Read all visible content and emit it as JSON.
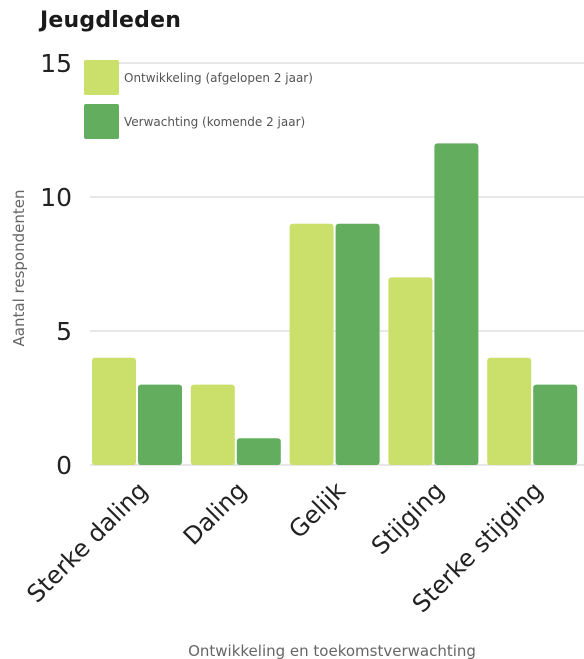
{
  "title": "Jeugdleden",
  "chart_data": {
    "type": "bar",
    "title": "Jeugdleden",
    "xlabel": "Ontwikkeling en toekomstverwachting",
    "ylabel": "Aantal respondenten",
    "categories": [
      "Sterke daling",
      "Daling",
      "Gelijk",
      "Stijging",
      "Sterke stijging"
    ],
    "series": [
      {
        "name": "Ontwikkeling (afgelopen 2 jaar)",
        "values": [
          4,
          3,
          9,
          7,
          4
        ],
        "color": "#cbe06a"
      },
      {
        "name": "Verwachting (komende 2 jaar)",
        "values": [
          3,
          1,
          9,
          12,
          3
        ],
        "color": "#63ad5f"
      }
    ],
    "ylim": [
      0,
      15
    ],
    "yticks": [
      0,
      5,
      10,
      15
    ],
    "grid": true,
    "legend_position": "top-left"
  }
}
